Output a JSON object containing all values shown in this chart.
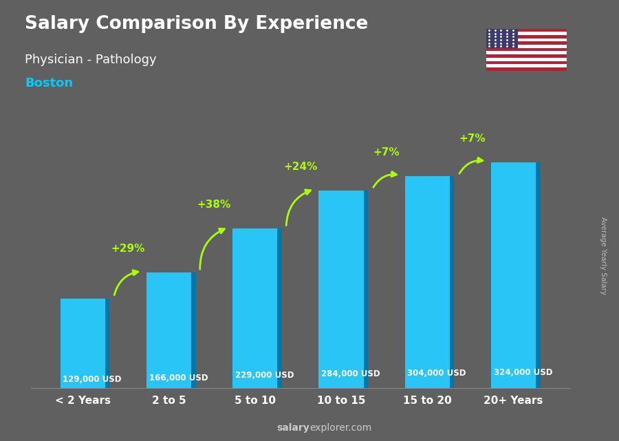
{
  "title": "Salary Comparison By Experience",
  "subtitle": "Physician - Pathology",
  "city": "Boston",
  "categories": [
    "< 2 Years",
    "2 to 5",
    "5 to 10",
    "10 to 15",
    "15 to 20",
    "20+ Years"
  ],
  "values": [
    129000,
    166000,
    229000,
    284000,
    304000,
    324000
  ],
  "labels": [
    "129,000 USD",
    "166,000 USD",
    "229,000 USD",
    "284,000 USD",
    "304,000 USD",
    "324,000 USD"
  ],
  "pct_changes": [
    "+29%",
    "+38%",
    "+24%",
    "+7%",
    "+7%"
  ],
  "bar_color_main": "#29c5f6",
  "bar_color_side": "#0077aa",
  "bar_color_top": "#55ddff",
  "background_color": "#606060",
  "title_color": "#ffffff",
  "subtitle_color": "#ffffff",
  "city_color": "#00ccff",
  "label_color": "#ffffff",
  "pct_color": "#aaff00",
  "xlabel_color": "#ffffff",
  "watermark_bold": "salary",
  "watermark_normal": "explorer.com",
  "ylabel_text": "Average Yearly Salary",
  "ylim": [
    0,
    380000
  ]
}
